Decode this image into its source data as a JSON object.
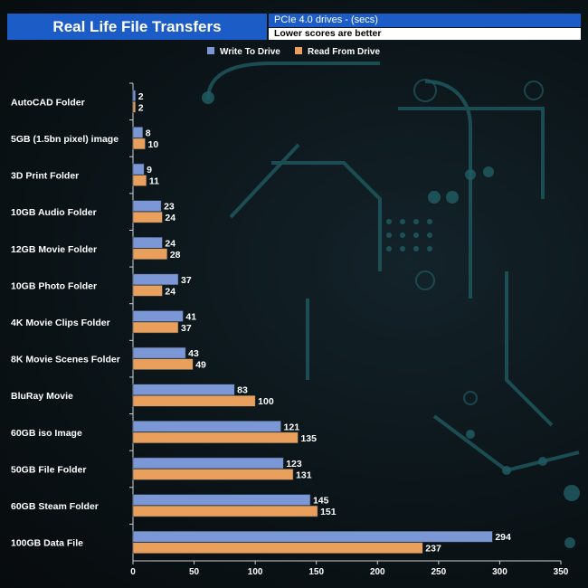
{
  "title": "Real Life File Transfers",
  "subtitle": "PCIe 4.0 drives - (secs)",
  "note": "Lower scores are better",
  "colors": {
    "write": "#7b97d6",
    "read": "#e9a05c",
    "title_bg": "#1c5cc7"
  },
  "chart_data": {
    "type": "bar",
    "orientation": "horizontal",
    "categories": [
      "AutoCAD Folder",
      "5GB (1.5bn pixel) image",
      "3D Print Folder",
      "10GB Audio Folder",
      "12GB Movie Folder",
      "10GB Photo Folder",
      "4K Movie Clips Folder",
      "8K Movie Scenes Folder",
      "BluRay Movie",
      "60GB iso Image",
      "50GB File Folder",
      "60GB Steam Folder",
      "100GB Data File"
    ],
    "series": [
      {
        "name": "Write To  Drive",
        "values": [
          2,
          8,
          9,
          23,
          24,
          37,
          41,
          43,
          83,
          121,
          123,
          145,
          294
        ]
      },
      {
        "name": "Read From  Drive",
        "values": [
          2,
          10,
          11,
          24,
          28,
          24,
          37,
          49,
          100,
          135,
          131,
          151,
          237
        ]
      }
    ],
    "xlim": [
      0,
      350
    ],
    "xticks": [
      0,
      50,
      100,
      150,
      200,
      250,
      300,
      350
    ],
    "legend": "top"
  }
}
